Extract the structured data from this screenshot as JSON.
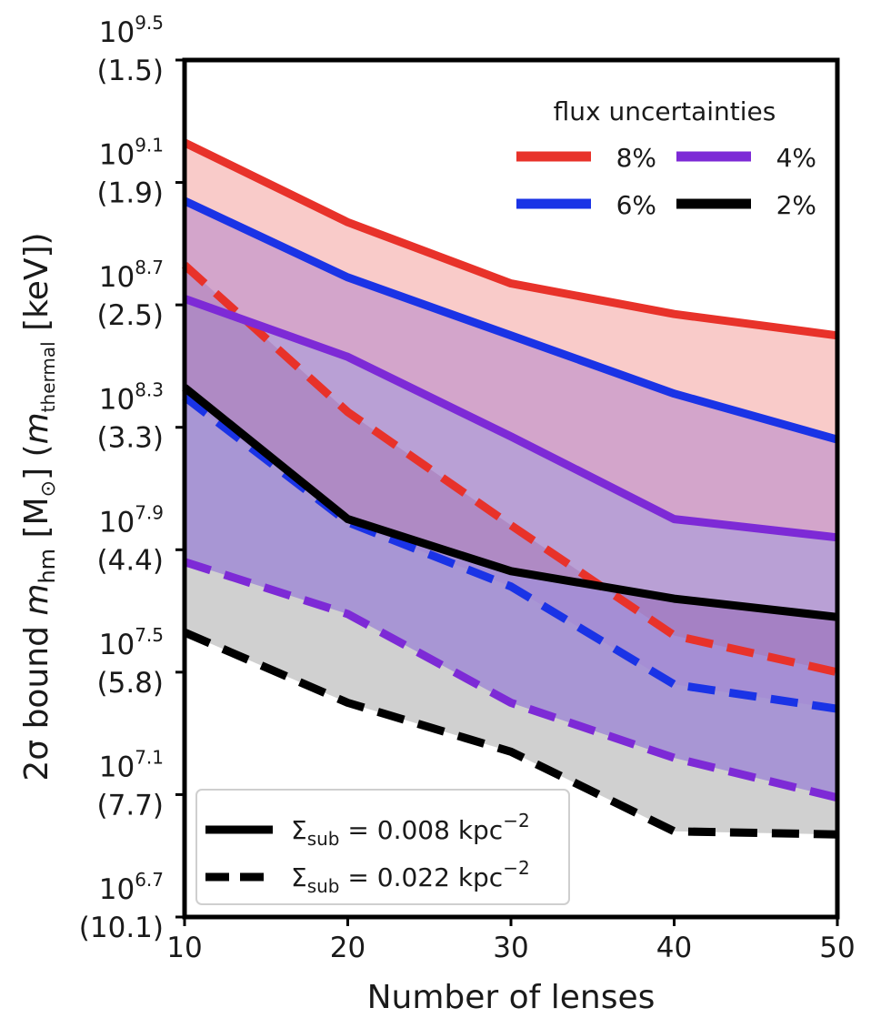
{
  "chart_data": {
    "type": "line",
    "title": "",
    "xlabel": "Number of lenses",
    "ylabel": "2σ bound m_hm [M⊙] (m_thermal [keV])",
    "ylabel_parts": {
      "main": "2σ bound ",
      "m": "m",
      "hm_sub": "hm",
      "units": " [M",
      "sun": "⊙",
      "units_close": "]",
      "paren": "  (",
      "m2": "m",
      "thermal_sub": "thermal",
      "kev": " [keV])"
    },
    "x": [
      10,
      20,
      30,
      40,
      50
    ],
    "xlim": [
      10,
      50
    ],
    "xticks": [
      {
        "value": 10,
        "label": "10"
      },
      {
        "value": 20,
        "label": "20"
      },
      {
        "value": 30,
        "label": "30"
      },
      {
        "value": 40,
        "label": "40"
      },
      {
        "value": 50,
        "label": "50"
      }
    ],
    "y_scale": "log10",
    "ylim": [
      6.7,
      9.5
    ],
    "yticks": [
      {
        "value": 9.5,
        "base": "10",
        "exp": "9.5",
        "paren": "(1.5)"
      },
      {
        "value": 9.1,
        "base": "10",
        "exp": "9.1",
        "paren": "(1.9)"
      },
      {
        "value": 8.7,
        "base": "10",
        "exp": "8.7",
        "paren": "(2.5)"
      },
      {
        "value": 8.3,
        "base": "10",
        "exp": "8.3",
        "paren": "(3.3)"
      },
      {
        "value": 7.9,
        "base": "10",
        "exp": "7.9",
        "paren": "(4.4)"
      },
      {
        "value": 7.5,
        "base": "10",
        "exp": "7.5",
        "paren": "(5.8)"
      },
      {
        "value": 7.1,
        "base": "10",
        "exp": "7.1",
        "paren": "(7.7)"
      },
      {
        "value": 6.7,
        "base": "10",
        "exp": "6.7",
        "paren": "(10.1)"
      }
    ],
    "grid": false,
    "series": [
      {
        "name": "8%",
        "color": "#e8322a",
        "fill": "#f8c2bf",
        "solid": [
          9.23,
          8.97,
          8.77,
          8.67,
          8.6
        ],
        "dashed": [
          8.83,
          8.35,
          7.98,
          7.62,
          7.5
        ]
      },
      {
        "name": "6%",
        "color": "#1a33e6",
        "fill": "#cc9fcb",
        "solid": [
          9.04,
          8.79,
          8.6,
          8.41,
          8.26
        ],
        "dashed": [
          8.4,
          7.99,
          7.78,
          7.46,
          7.38
        ]
      },
      {
        "name": "4%",
        "color": "#7d2ad6",
        "fill": "#b5a4f0",
        "solid": [
          8.72,
          8.53,
          8.27,
          8.0,
          7.94
        ],
        "dashed": [
          7.86,
          7.69,
          7.4,
          7.22,
          7.09
        ]
      },
      {
        "name": "2%",
        "color": "#000000",
        "fill": "#c8c8c8",
        "solid": [
          8.43,
          8.0,
          7.83,
          7.74,
          7.68
        ],
        "dashed": [
          7.63,
          7.4,
          7.24,
          6.98,
          6.97
        ]
      }
    ],
    "overlap_fills": [
      {
        "color": "#b89fce",
        "opacity": 0.75
      },
      {
        "color": "#9d86d5",
        "opacity": 0.75
      },
      {
        "color": "#a574b4",
        "opacity": 0.5
      }
    ],
    "legend_colors": {
      "title": "flux uncertainties",
      "position": "top-right",
      "columns": 2,
      "order": [
        "8%",
        "4%",
        "6%",
        "2%"
      ]
    },
    "legend_style": {
      "position": "bottom-left",
      "items": [
        {
          "label_prefix": "Σ",
          "label_sub": "sub",
          "label_mid": " = 0.008 kpc",
          "label_sup": "−2",
          "style": "solid"
        },
        {
          "label_prefix": "Σ",
          "label_sub": "sub",
          "label_mid": " = 0.022 kpc",
          "label_sup": "−2",
          "style": "dashed"
        }
      ]
    }
  }
}
